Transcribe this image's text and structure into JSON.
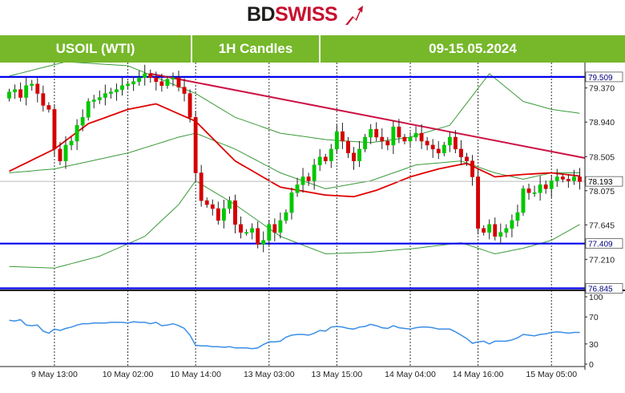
{
  "brand": {
    "part1": "BD",
    "part2": "SWISS"
  },
  "header": {
    "instrument": "USOIL (WTI)",
    "timeframe": "1H Candles",
    "period": "09-15.05.2024"
  },
  "colors": {
    "header_bg": "#76b82a",
    "bull": "#00c800",
    "bear": "#d40000",
    "ma": "#e00000",
    "bands": "#3a9a3a",
    "levels": "#0000ee",
    "trendline": "#cc1144",
    "rsi": "#3a8ee6"
  },
  "chart_data": [
    {
      "type": "candlestick",
      "title": "",
      "y_ticks": [
        79.37,
        78.94,
        78.505,
        78.075,
        77.645,
        77.21
      ],
      "y_tick_labels": [
        "79.370",
        "78.940",
        "78.505",
        "78.075",
        "77.645",
        "77.210"
      ],
      "ylim": [
        76.84,
        79.69
      ],
      "x_tick_labels": [
        "9 May 13:00",
        "10 May 02:00",
        "10 May 14:00",
        "13 May 03:00",
        "13 May 15:00",
        "14 May 04:00",
        "14 May 16:00",
        "15 May 05:00"
      ],
      "x_tick_index": [
        8,
        21,
        33,
        46,
        58,
        71,
        83,
        96
      ],
      "candle_count": 102,
      "horizontal_levels": [
        {
          "value": 79.509,
          "label": "79.509"
        },
        {
          "value": 77.409,
          "label": "77.409"
        },
        {
          "value": 76.845,
          "label": "76.845"
        }
      ],
      "current_price": {
        "value": 78.193,
        "label": "78.193"
      },
      "trendline": {
        "from": {
          "index": 25,
          "value": 79.55
        },
        "to": {
          "index": 101,
          "value": 78.5
        }
      },
      "close": [
        79.32,
        79.35,
        79.25,
        79.4,
        79.42,
        79.3,
        79.15,
        79.1,
        78.6,
        78.45,
        78.65,
        78.7,
        78.9,
        79.0,
        79.2,
        79.22,
        79.25,
        79.3,
        79.32,
        79.35,
        79.4,
        79.42,
        79.45,
        79.5,
        79.55,
        79.5,
        79.45,
        79.4,
        79.48,
        79.5,
        79.38,
        79.3,
        79.0,
        78.3,
        77.95,
        77.9,
        77.85,
        77.7,
        77.85,
        77.95,
        77.65,
        77.55,
        77.55,
        77.6,
        77.4,
        77.45,
        77.65,
        77.55,
        77.7,
        77.8,
        78.05,
        78.15,
        78.25,
        78.2,
        78.4,
        78.5,
        78.45,
        78.6,
        78.82,
        78.7,
        78.55,
        78.45,
        78.6,
        78.75,
        78.85,
        78.75,
        78.7,
        78.65,
        78.88,
        78.75,
        78.7,
        78.75,
        78.8,
        78.7,
        78.65,
        78.6,
        78.55,
        78.65,
        78.75,
        78.6,
        78.5,
        78.45,
        78.25,
        77.6,
        77.55,
        77.65,
        77.5,
        77.55,
        77.6,
        77.7,
        77.8,
        78.1,
        78.05,
        78.05,
        78.15,
        78.1,
        78.2,
        78.25,
        78.22,
        78.2,
        78.25,
        78.19
      ],
      "moving_average_red": [
        [
          0,
          78.32
        ],
        [
          8,
          78.6
        ],
        [
          14,
          78.92
        ],
        [
          21,
          79.1
        ],
        [
          26,
          79.17
        ],
        [
          33,
          78.95
        ],
        [
          40,
          78.45
        ],
        [
          48,
          78.12
        ],
        [
          56,
          78.02
        ],
        [
          61,
          78.0
        ],
        [
          65,
          78.08
        ],
        [
          71,
          78.25
        ],
        [
          76,
          78.35
        ],
        [
          81,
          78.42
        ],
        [
          86,
          78.25
        ],
        [
          91,
          78.28
        ],
        [
          96,
          78.3
        ],
        [
          101,
          78.26
        ]
      ],
      "bollinger_upper": [
        [
          0,
          79.52
        ],
        [
          10,
          79.7
        ],
        [
          21,
          79.65
        ],
        [
          33,
          79.3
        ],
        [
          40,
          79.0
        ],
        [
          48,
          78.8
        ],
        [
          56,
          78.72
        ],
        [
          64,
          78.68
        ],
        [
          71,
          78.75
        ],
        [
          78,
          78.9
        ],
        [
          85,
          79.55
        ],
        [
          91,
          79.2
        ],
        [
          96,
          79.1
        ],
        [
          101,
          79.05
        ]
      ],
      "bollinger_middle": [
        [
          0,
          78.3
        ],
        [
          8,
          78.35
        ],
        [
          21,
          78.55
        ],
        [
          30,
          78.75
        ],
        [
          33,
          78.8
        ],
        [
          40,
          78.6
        ],
        [
          48,
          78.3
        ],
        [
          56,
          78.1
        ],
        [
          64,
          78.2
        ],
        [
          72,
          78.4
        ],
        [
          80,
          78.45
        ],
        [
          86,
          78.3
        ],
        [
          91,
          78.22
        ],
        [
          96,
          78.3
        ],
        [
          101,
          78.3
        ]
      ],
      "bollinger_lower": [
        [
          0,
          77.12
        ],
        [
          8,
          77.1
        ],
        [
          16,
          77.25
        ],
        [
          24,
          77.5
        ],
        [
          30,
          77.9
        ],
        [
          33,
          78.2
        ],
        [
          40,
          77.9
        ],
        [
          48,
          77.5
        ],
        [
          56,
          77.28
        ],
        [
          64,
          77.3
        ],
        [
          72,
          77.35
        ],
        [
          80,
          77.42
        ],
        [
          86,
          77.28
        ],
        [
          91,
          77.35
        ],
        [
          96,
          77.45
        ],
        [
          101,
          77.65
        ]
      ]
    },
    {
      "type": "line",
      "title": "",
      "y_ticks": [
        100,
        70,
        30,
        0
      ],
      "y_tick_labels": [
        "100",
        "70",
        "30",
        "0"
      ],
      "ylim": [
        0,
        100
      ],
      "series": [
        {
          "values": [
            65,
            64,
            66,
            58,
            57,
            58,
            49,
            46,
            52,
            50,
            53,
            55,
            58,
            60,
            60,
            61,
            61,
            61,
            62,
            62,
            62,
            61,
            63,
            62,
            62,
            60,
            62,
            57,
            58,
            60,
            57,
            53,
            43,
            28,
            27,
            27,
            26,
            26,
            25,
            26,
            24,
            24,
            24,
            23,
            24,
            29,
            33,
            33,
            34,
            40,
            43,
            44,
            44,
            43,
            46,
            50,
            49,
            55,
            56,
            55,
            53,
            52,
            55,
            56,
            59,
            57,
            54,
            53,
            57,
            54,
            53,
            52,
            54,
            55,
            55,
            54,
            52,
            52,
            52,
            48,
            43,
            38,
            31,
            33,
            34,
            30,
            34,
            34,
            34,
            36,
            39,
            44,
            43,
            42,
            44,
            45,
            47,
            48,
            47,
            46,
            47,
            47
          ]
        }
      ]
    }
  ]
}
